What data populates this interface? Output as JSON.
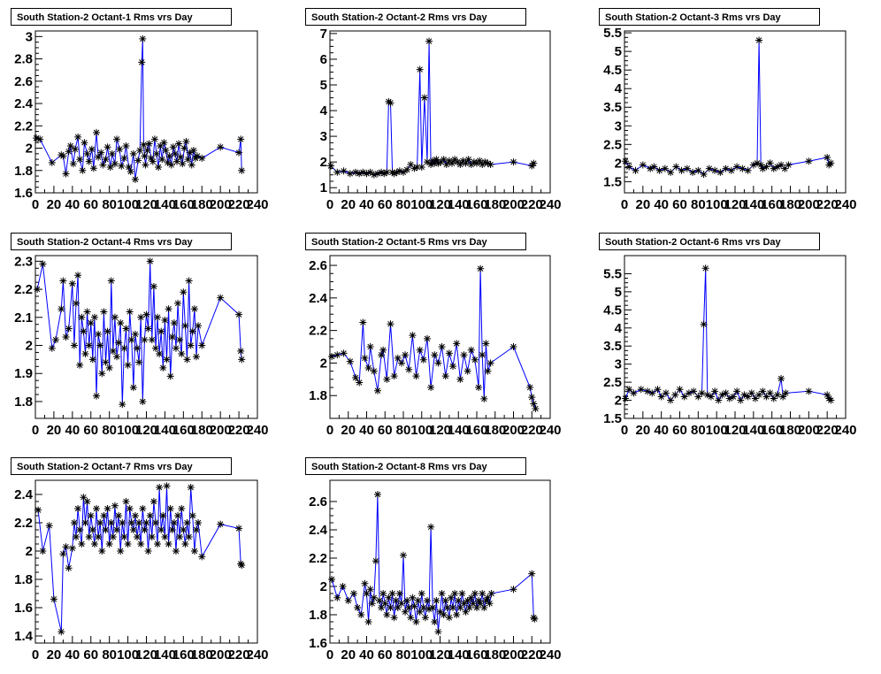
{
  "colors": {
    "line": "#0000ff",
    "marker": "#000000",
    "frame": "#000000",
    "background": "#ffffff"
  },
  "x_tick_labels": [
    "0",
    "20",
    "40",
    "60",
    "80",
    "100",
    "120",
    "140",
    "160",
    "180",
    "200",
    "220",
    "240"
  ],
  "chart_data": [
    {
      "type": "line",
      "title": "South Station-2 Octant-1 Rms vrs Day",
      "xlim": [
        0,
        240
      ],
      "ylim": [
        1.6,
        3.05
      ],
      "yticks": [
        1.6,
        1.8,
        2,
        2.2,
        2.4,
        2.6,
        2.8,
        3
      ],
      "ytick_labels": [
        "1.6",
        "1.8",
        "2",
        "2.2",
        "2.4",
        "2.6",
        "2.8",
        "3"
      ],
      "x": [
        1,
        5,
        18,
        28,
        30,
        33,
        36,
        38,
        41,
        43,
        46,
        48,
        51,
        53,
        56,
        58,
        61,
        63,
        66,
        68,
        71,
        73,
        76,
        78,
        81,
        83,
        86,
        88,
        91,
        93,
        96,
        98,
        101,
        103,
        106,
        108,
        111,
        113,
        115,
        116,
        117,
        118,
        119,
        121,
        123,
        125,
        127,
        129,
        131,
        133,
        135,
        137,
        139,
        141,
        143,
        145,
        147,
        149,
        151,
        153,
        155,
        157,
        159,
        161,
        163,
        165,
        167,
        169,
        171,
        173,
        175,
        180,
        200,
        220,
        222,
        223
      ],
      "y": [
        2.09,
        2.08,
        1.87,
        1.94,
        1.93,
        1.77,
        1.97,
        2.02,
        1.86,
        1.99,
        2.1,
        1.9,
        1.8,
        2.05,
        1.95,
        1.88,
        1.99,
        1.82,
        2.14,
        1.92,
        1.96,
        1.85,
        1.9,
        2.01,
        1.83,
        1.95,
        1.86,
        2.08,
        1.99,
        1.84,
        1.91,
        2.02,
        1.83,
        1.79,
        1.95,
        1.72,
        1.89,
        1.98,
        2.77,
        2.98,
        2.03,
        1.93,
        1.85,
        1.98,
        2.04,
        1.91,
        1.88,
        2.08,
        1.95,
        1.83,
        2.02,
        1.9,
        2.05,
        1.98,
        1.87,
        1.93,
        1.85,
        2.01,
        1.95,
        1.88,
        2.04,
        1.92,
        1.86,
        2.0,
        2.06,
        1.9,
        1.96,
        1.85,
        1.98,
        1.91,
        1.93,
        1.91,
        2.01,
        1.96,
        2.08,
        1.8
      ]
    },
    {
      "type": "line",
      "title": "South Station-2 Octant-2 Rms vrs Day",
      "xlim": [
        0,
        240
      ],
      "ylim": [
        0.8,
        7.1
      ],
      "yticks": [
        1,
        2,
        3,
        4,
        5,
        6,
        7
      ],
      "ytick_labels": [
        "1",
        "2",
        "3",
        "4",
        "5",
        "6",
        "7"
      ],
      "x": [
        1,
        8,
        15,
        22,
        28,
        32,
        36,
        40,
        44,
        48,
        52,
        56,
        59,
        62,
        64,
        66,
        68,
        70,
        73,
        76,
        80,
        84,
        88,
        92,
        95,
        98,
        100,
        103,
        106,
        108,
        110,
        112,
        114,
        116,
        118,
        121,
        124,
        127,
        130,
        133,
        136,
        139,
        142,
        145,
        148,
        151,
        154,
        157,
        160,
        163,
        166,
        169,
        172,
        175,
        200,
        220,
        222
      ],
      "y": [
        1.85,
        1.6,
        1.65,
        1.55,
        1.6,
        1.55,
        1.6,
        1.55,
        1.6,
        1.5,
        1.55,
        1.6,
        1.55,
        1.6,
        4.35,
        4.3,
        1.6,
        1.55,
        1.6,
        1.65,
        1.6,
        1.7,
        1.9,
        1.75,
        1.8,
        5.6,
        1.8,
        4.5,
        2.0,
        6.7,
        1.9,
        2.05,
        1.95,
        2.1,
        1.95,
        2.0,
        2.1,
        1.9,
        2.05,
        1.95,
        2.1,
        2.0,
        1.9,
        2.05,
        1.95,
        2.1,
        1.9,
        2.0,
        1.95,
        2.05,
        1.9,
        2.0,
        1.95,
        1.9,
        2.0,
        1.85,
        1.95
      ]
    },
    {
      "type": "line",
      "title": "South Station-2 Octant-3 Rms vrs Day",
      "xlim": [
        0,
        240
      ],
      "ylim": [
        1.2,
        5.55
      ],
      "yticks": [
        1.5,
        2,
        2.5,
        3,
        3.5,
        4,
        4.5,
        5,
        5.5
      ],
      "ytick_labels": [
        "1.5",
        "2",
        "2.5",
        "3",
        "3.5",
        "4",
        "4.5",
        "5",
        "5.5"
      ],
      "x": [
        1,
        5,
        12,
        20,
        28,
        32,
        38,
        44,
        50,
        56,
        62,
        68,
        74,
        80,
        86,
        92,
        98,
        104,
        110,
        116,
        122,
        128,
        134,
        140,
        144,
        146,
        148,
        150,
        154,
        158,
        162,
        166,
        170,
        174,
        178,
        200,
        220,
        222,
        224
      ],
      "y": [
        2.05,
        1.9,
        1.8,
        1.95,
        1.85,
        1.9,
        1.8,
        1.85,
        1.75,
        1.9,
        1.8,
        1.85,
        1.75,
        1.8,
        1.7,
        1.85,
        1.8,
        1.75,
        1.85,
        1.8,
        1.9,
        1.85,
        1.8,
        1.95,
        2.0,
        5.3,
        1.95,
        1.85,
        1.9,
        2.0,
        1.85,
        1.9,
        1.95,
        1.85,
        1.95,
        2.05,
        2.15,
        1.95,
        2.0
      ]
    },
    {
      "type": "line",
      "title": "South Station-2 Octant-4 Rms vrs Day",
      "xlim": [
        0,
        240
      ],
      "ylim": [
        1.74,
        2.32
      ],
      "yticks": [
        1.8,
        1.9,
        2,
        2.1,
        2.2,
        2.3
      ],
      "ytick_labels": [
        "1.8",
        "1.9",
        "2",
        "2.1",
        "2.2",
        "2.3"
      ],
      "x": [
        2,
        8,
        18,
        22,
        28,
        30,
        33,
        36,
        40,
        42,
        44,
        46,
        48,
        50,
        52,
        54,
        56,
        58,
        60,
        62,
        64,
        66,
        68,
        70,
        72,
        74,
        76,
        78,
        80,
        82,
        84,
        86,
        88,
        90,
        92,
        94,
        96,
        98,
        100,
        102,
        104,
        106,
        108,
        110,
        112,
        114,
        116,
        118,
        120,
        122,
        124,
        126,
        128,
        130,
        132,
        134,
        136,
        138,
        140,
        142,
        144,
        146,
        148,
        150,
        152,
        154,
        156,
        158,
        160,
        162,
        164,
        166,
        168,
        170,
        172,
        174,
        176,
        180,
        200,
        220,
        222,
        223
      ],
      "y": [
        2.2,
        2.29,
        1.99,
        2.02,
        2.13,
        2.23,
        2.03,
        2.06,
        2.22,
        2.0,
        2.15,
        2.25,
        1.93,
        2.1,
        2.05,
        1.97,
        2.12,
        2.0,
        2.08,
        1.95,
        2.1,
        1.82,
        2.04,
        2.0,
        1.9,
        2.12,
        1.94,
        2.05,
        1.92,
        2.23,
        1.98,
        2.1,
        1.96,
        2.01,
        2.08,
        1.79,
        1.99,
        2.06,
        1.93,
        2.12,
        2.02,
        1.85,
        2.04,
        1.99,
        1.94,
        2.1,
        1.8,
        2.02,
        2.11,
        2.06,
        2.3,
        2.02,
        2.21,
        1.99,
        2.1,
        1.97,
        2.05,
        1.92,
        2.09,
        1.95,
        2.13,
        1.89,
        2.03,
        2.08,
        1.99,
        2.15,
        2.02,
        1.97,
        2.19,
        2.07,
        1.95,
        2.23,
        2.0,
        2.05,
        2.13,
        1.96,
        2.07,
        2.0,
        2.17,
        2.11,
        1.98,
        1.95
      ]
    },
    {
      "type": "line",
      "title": "South Station-2 Octant-5 Rms vrs Day",
      "xlim": [
        0,
        240
      ],
      "ylim": [
        1.66,
        2.66
      ],
      "yticks": [
        1.8,
        2,
        2.2,
        2.4,
        2.6
      ],
      "ytick_labels": [
        "1.8",
        "2",
        "2.2",
        "2.4",
        "2.6"
      ],
      "x": [
        2,
        8,
        15,
        22,
        28,
        32,
        36,
        38,
        42,
        44,
        48,
        52,
        56,
        58,
        62,
        66,
        70,
        74,
        78,
        82,
        86,
        90,
        94,
        98,
        102,
        106,
        110,
        114,
        118,
        122,
        126,
        130,
        134,
        138,
        142,
        146,
        150,
        154,
        158,
        162,
        164,
        166,
        168,
        170,
        172,
        175,
        200,
        218,
        220,
        222,
        224
      ],
      "y": [
        2.04,
        2.05,
        2.06,
        2.01,
        1.91,
        1.88,
        2.25,
        2.03,
        1.97,
        2.1,
        1.95,
        1.83,
        2.05,
        2.08,
        1.9,
        2.24,
        1.92,
        2.03,
        2.0,
        2.05,
        1.96,
        2.17,
        1.92,
        2.08,
        2.02,
        2.15,
        1.85,
        2.05,
        2.0,
        2.1,
        1.92,
        2.06,
        1.98,
        2.12,
        1.9,
        2.05,
        1.95,
        2.08,
        2.02,
        1.85,
        2.58,
        2.05,
        1.78,
        2.12,
        1.95,
        2.0,
        2.1,
        1.85,
        1.79,
        1.75,
        1.72
      ]
    },
    {
      "type": "line",
      "title": "South Station-2 Octant-6 Rms vrs Day",
      "xlim": [
        0,
        240
      ],
      "ylim": [
        1.5,
        6.0
      ],
      "yticks": [
        1.5,
        2,
        2.5,
        3,
        3.5,
        4,
        4.5,
        5,
        5.5
      ],
      "ytick_labels": [
        "1.5",
        "2",
        "2.5",
        "3",
        "3.5",
        "4",
        "4.5",
        "5",
        "5.5"
      ],
      "x": [
        1,
        5,
        10,
        18,
        25,
        30,
        36,
        40,
        45,
        50,
        55,
        60,
        65,
        70,
        75,
        80,
        84,
        86,
        88,
        90,
        94,
        98,
        102,
        106,
        110,
        114,
        118,
        122,
        126,
        130,
        134,
        138,
        142,
        146,
        150,
        154,
        158,
        162,
        166,
        170,
        172,
        175,
        200,
        220,
        222,
        224
      ],
      "y": [
        2.05,
        2.3,
        2.2,
        2.3,
        2.25,
        2.2,
        2.3,
        2.1,
        2.2,
        2.0,
        2.15,
        2.3,
        2.1,
        2.2,
        2.25,
        2.1,
        2.2,
        4.1,
        5.65,
        2.15,
        2.1,
        2.25,
        2.0,
        2.15,
        2.2,
        2.05,
        2.1,
        2.25,
        2.0,
        2.15,
        2.1,
        2.2,
        2.05,
        2.15,
        2.25,
        2.1,
        2.2,
        2.05,
        2.15,
        2.6,
        2.1,
        2.2,
        2.25,
        2.15,
        2.05,
        2.0
      ]
    },
    {
      "type": "line",
      "title": "South Station-2 Octant-7 Rms vrs Day",
      "xlim": [
        0,
        240
      ],
      "ylim": [
        1.35,
        2.5
      ],
      "yticks": [
        1.4,
        1.6,
        1.8,
        2,
        2.2,
        2.4
      ],
      "ytick_labels": [
        "1.4",
        "1.6",
        "1.8",
        "2",
        "2.2",
        "2.4"
      ],
      "x": [
        3,
        8,
        15,
        20,
        28,
        30,
        33,
        36,
        40,
        42,
        44,
        46,
        48,
        50,
        52,
        54,
        56,
        58,
        60,
        62,
        64,
        66,
        68,
        70,
        72,
        74,
        76,
        78,
        80,
        82,
        84,
        86,
        88,
        90,
        92,
        94,
        96,
        98,
        100,
        102,
        104,
        106,
        108,
        110,
        112,
        114,
        116,
        118,
        120,
        122,
        124,
        126,
        128,
        130,
        132,
        134,
        136,
        138,
        140,
        142,
        144,
        146,
        148,
        150,
        152,
        154,
        156,
        158,
        160,
        162,
        164,
        166,
        168,
        170,
        172,
        174,
        176,
        180,
        200,
        220,
        222,
        223
      ],
      "y": [
        2.29,
        2.0,
        2.18,
        1.66,
        1.43,
        1.98,
        2.03,
        1.88,
        2.02,
        2.2,
        2.1,
        2.3,
        2.15,
        2.05,
        2.38,
        2.2,
        2.35,
        2.1,
        2.25,
        2.15,
        2.05,
        2.3,
        2.1,
        2.2,
        2.0,
        2.25,
        2.15,
        2.3,
        2.05,
        2.2,
        2.1,
        2.32,
        2.15,
        2.25,
        2.0,
        2.2,
        2.1,
        2.35,
        2.05,
        2.3,
        2.2,
        2.15,
        2.25,
        2.1,
        2.2,
        2.05,
        2.3,
        2.15,
        2.2,
        2.0,
        2.25,
        2.1,
        2.35,
        2.2,
        2.05,
        2.45,
        2.15,
        2.25,
        2.1,
        2.46,
        2.05,
        2.3,
        2.15,
        2.2,
        2.0,
        2.25,
        2.1,
        2.3,
        2.15,
        2.05,
        2.2,
        2.1,
        2.45,
        2.25,
        2.0,
        2.15,
        2.2,
        1.96,
        2.19,
        2.16,
        1.91,
        1.9
      ]
    },
    {
      "type": "line",
      "title": "South Station-2 Octant-8 Rms vrs Day",
      "xlim": [
        0,
        240
      ],
      "ylim": [
        1.6,
        2.75
      ],
      "yticks": [
        1.6,
        1.8,
        2,
        2.2,
        2.4,
        2.6
      ],
      "ytick_labels": [
        "1.6",
        "1.8",
        "2",
        "2.2",
        "2.4",
        "2.6"
      ],
      "x": [
        2,
        8,
        14,
        20,
        26,
        30,
        34,
        38,
        40,
        42,
        44,
        46,
        48,
        50,
        52,
        54,
        56,
        58,
        60,
        62,
        64,
        66,
        68,
        70,
        72,
        74,
        76,
        78,
        80,
        82,
        84,
        86,
        88,
        90,
        92,
        94,
        96,
        98,
        100,
        102,
        104,
        106,
        108,
        110,
        112,
        114,
        116,
        118,
        120,
        122,
        124,
        126,
        128,
        130,
        132,
        134,
        136,
        138,
        140,
        142,
        144,
        146,
        148,
        150,
        152,
        154,
        156,
        158,
        160,
        162,
        164,
        166,
        168,
        170,
        172,
        174,
        176,
        200,
        220,
        222,
        223
      ],
      "y": [
        2.05,
        1.92,
        2.0,
        1.9,
        1.95,
        1.85,
        1.8,
        2.02,
        1.95,
        1.75,
        1.98,
        1.88,
        1.92,
        2.18,
        2.65,
        1.9,
        1.85,
        1.95,
        1.88,
        1.8,
        1.92,
        1.85,
        1.95,
        1.78,
        1.9,
        1.85,
        1.95,
        1.88,
        2.22,
        1.82,
        1.9,
        1.85,
        1.78,
        1.92,
        1.86,
        1.75,
        1.9,
        1.82,
        1.95,
        1.85,
        1.78,
        1.9,
        1.84,
        2.42,
        1.85,
        1.75,
        1.9,
        1.68,
        1.82,
        1.95,
        1.8,
        1.9,
        1.85,
        1.78,
        1.92,
        1.85,
        1.95,
        1.8,
        1.9,
        1.85,
        1.95,
        1.88,
        1.82,
        1.9,
        1.85,
        1.92,
        1.88,
        1.95,
        1.85,
        1.9,
        1.88,
        1.95,
        1.85,
        1.9,
        1.92,
        1.88,
        1.95,
        1.98,
        2.09,
        1.78,
        1.77
      ]
    }
  ]
}
